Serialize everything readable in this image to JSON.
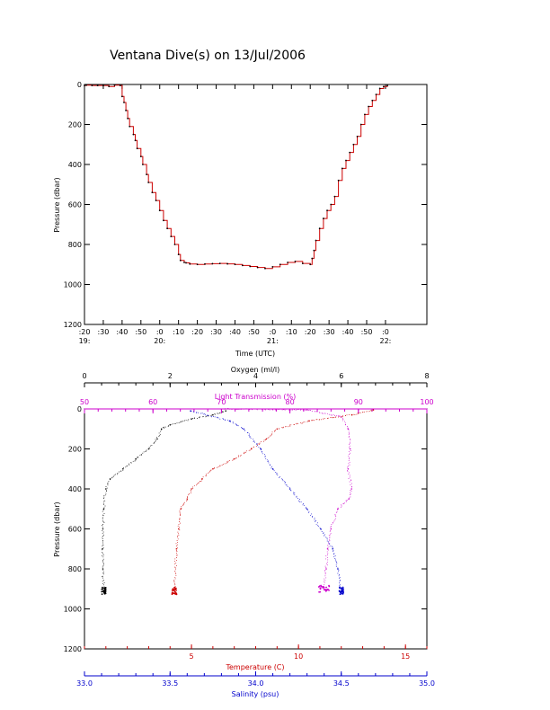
{
  "title": "Ventana Dive(s) on 13/Jul/2006",
  "colors": {
    "depth": "#cc0000",
    "oxygen": "#000000",
    "light": "#cc00cc",
    "temperature": "#cc0000",
    "salinity": "#0000cc"
  },
  "chart_data": [
    {
      "type": "line",
      "xlabel": "Time (UTC)",
      "ylabel": "Pressure (dbar)",
      "ylim": [
        1200,
        0
      ],
      "x_unit": "minutes after 19:20",
      "xlim": [
        0,
        182
      ],
      "y_ticks": [
        "0",
        "200",
        "400",
        "600",
        "800",
        "1000",
        "1200"
      ],
      "x_ticks": [
        {
          "t": 0,
          "top": ":20",
          "bottom": "19:"
        },
        {
          "t": 10,
          "top": ":30",
          "bottom": ""
        },
        {
          "t": 20,
          "top": ":40",
          "bottom": ""
        },
        {
          "t": 30,
          "top": ":50",
          "bottom": ""
        },
        {
          "t": 40,
          "top": ":0",
          "bottom": "20:"
        },
        {
          "t": 50,
          "top": ":10",
          "bottom": ""
        },
        {
          "t": 60,
          "top": ":20",
          "bottom": ""
        },
        {
          "t": 70,
          "top": ":30",
          "bottom": ""
        },
        {
          "t": 80,
          "top": ":40",
          "bottom": ""
        },
        {
          "t": 90,
          "top": ":50",
          "bottom": ""
        },
        {
          "t": 100,
          "top": ":0",
          "bottom": "21:"
        },
        {
          "t": 110,
          "top": ":10",
          "bottom": ""
        },
        {
          "t": 120,
          "top": ":20",
          "bottom": ""
        },
        {
          "t": 130,
          "top": ":30",
          "bottom": ""
        },
        {
          "t": 140,
          "top": ":40",
          "bottom": ""
        },
        {
          "t": 150,
          "top": ":50",
          "bottom": ""
        },
        {
          "t": 160,
          "top": ":0",
          "bottom": "22:"
        }
      ],
      "series": [
        {
          "x": [
            0,
            1,
            4,
            7,
            10,
            13,
            16,
            19,
            20,
            21,
            22,
            23,
            24,
            26,
            27,
            28,
            30,
            31,
            33,
            34,
            36,
            38,
            40,
            42,
            44,
            46,
            48,
            50,
            51,
            53,
            54,
            56,
            60,
            64,
            68,
            72,
            76,
            80,
            84,
            88,
            92,
            96,
            100,
            104,
            108,
            112,
            116,
            120,
            121,
            122,
            123,
            125,
            127,
            129,
            131,
            133,
            135,
            137,
            139,
            141,
            143,
            145,
            147,
            149,
            151,
            153,
            155,
            157,
            159,
            161
          ],
          "y": [
            5,
            3,
            5,
            5,
            5,
            10,
            3,
            5,
            60,
            90,
            130,
            170,
            210,
            250,
            280,
            320,
            360,
            400,
            450,
            490,
            540,
            580,
            630,
            680,
            720,
            760,
            800,
            850,
            880,
            890,
            892,
            898,
            900,
            898,
            896,
            895,
            897,
            900,
            905,
            910,
            915,
            920,
            912,
            900,
            890,
            885,
            895,
            900,
            870,
            830,
            780,
            720,
            670,
            630,
            600,
            560,
            480,
            420,
            380,
            340,
            300,
            260,
            200,
            150,
            110,
            80,
            50,
            20,
            10,
            5
          ]
        }
      ]
    },
    {
      "type": "scatter",
      "ylabel": "Pressure (dbar)",
      "ylim": [
        1200,
        0
      ],
      "y_ticks": [
        "0",
        "200",
        "400",
        "600",
        "800",
        "1000",
        "1200"
      ],
      "axes": [
        {
          "name": "Oxygen (ml/l)",
          "position": "top-outer",
          "color": "#000000",
          "range": [
            0,
            8
          ],
          "tick_labels": [
            "0",
            "2",
            "4",
            "6",
            "8"
          ]
        },
        {
          "name": "Light Transmission (%)",
          "position": "top-inner",
          "color": "#cc00cc",
          "range": [
            50,
            100
          ],
          "tick_labels": [
            "50",
            "60",
            "70",
            "80",
            "90",
            "100"
          ]
        },
        {
          "name": "Temperature (C)",
          "position": "bottom-inner",
          "color": "#cc0000",
          "range": [
            0,
            16
          ],
          "tick_labels": [
            "5",
            "10",
            "15"
          ]
        },
        {
          "name": "Salinity (psu)",
          "position": "bottom-outer",
          "color": "#0000cc",
          "range": [
            33.0,
            35.0
          ],
          "tick_labels": [
            "33.0",
            "33.5",
            "34.0",
            "34.5",
            "35.0"
          ]
        }
      ],
      "series": [
        {
          "axis": "Oxygen (ml/l)",
          "x": [
            3.3,
            3.0,
            2.5,
            2.0,
            1.8,
            1.7,
            1.5,
            1.2,
            0.9,
            0.6,
            0.5,
            0.45,
            0.43,
            0.42,
            0.43,
            0.45
          ],
          "y": [
            10,
            30,
            50,
            80,
            100,
            150,
            200,
            250,
            300,
            350,
            400,
            500,
            600,
            700,
            800,
            910
          ]
        },
        {
          "axis": "Light Transmission (%)",
          "x": [
            70.5,
            82.5,
            87.5,
            88.5,
            88.8,
            88.5,
            89.0,
            88.6,
            87.0,
            86.0,
            85.5,
            85.3,
            85.0
          ],
          "y": [
            0,
            5,
            40,
            100,
            200,
            300,
            400,
            450,
            500,
            600,
            700,
            800,
            900
          ]
        },
        {
          "axis": "Temperature (C)",
          "x": [
            13.5,
            12.5,
            10.5,
            9.0,
            8.5,
            7.8,
            7.0,
            6.0,
            5.5,
            5.0,
            4.8,
            4.5,
            4.4,
            4.3,
            4.2
          ],
          "y": [
            5,
            30,
            60,
            100,
            150,
            200,
            250,
            300,
            350,
            400,
            450,
            500,
            600,
            700,
            910
          ]
        },
        {
          "axis": "Salinity (psu)",
          "x": [
            33.62,
            33.85,
            33.93,
            34.03,
            34.1,
            34.2,
            34.3,
            34.38,
            34.45,
            34.48,
            34.5
          ],
          "y": [
            10,
            60,
            100,
            200,
            300,
            400,
            500,
            600,
            700,
            800,
            910
          ]
        }
      ]
    }
  ]
}
